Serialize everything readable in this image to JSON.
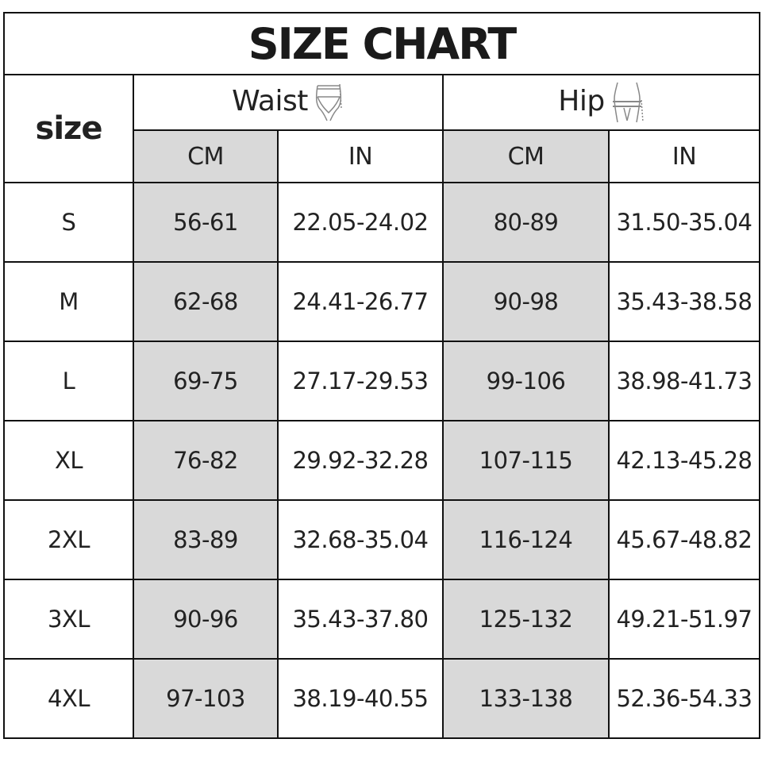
{
  "title": "SIZE CHART",
  "size_header": "size",
  "groups": [
    {
      "label": "Waist",
      "icon": "waist-measure-icon"
    },
    {
      "label": "Hip",
      "icon": "hip-measure-icon"
    }
  ],
  "units": [
    "CM",
    "IN",
    "CM",
    "IN"
  ],
  "rows": [
    [
      "S",
      "56-61",
      "22.05-24.02",
      "80-89",
      "31.50-35.04"
    ],
    [
      "M",
      "62-68",
      "24.41-26.77",
      "90-98",
      "35.43-38.58"
    ],
    [
      "L",
      "69-75",
      "27.17-29.53",
      "99-106",
      "38.98-41.73"
    ],
    [
      "XL",
      "76-82",
      "29.92-32.28",
      "107-115",
      "42.13-45.28"
    ],
    [
      "2XL",
      "83-89",
      "32.68-35.04",
      "116-124",
      "45.67-48.82"
    ],
    [
      "3XL",
      "90-96",
      "35.43-37.80",
      "125-132",
      "49.21-51.97"
    ],
    [
      "4XL",
      "97-103",
      "38.19-40.55",
      "133-138",
      "52.36-54.33"
    ]
  ],
  "colors": {
    "shade": "#d9d9d9",
    "border": "#111111"
  }
}
